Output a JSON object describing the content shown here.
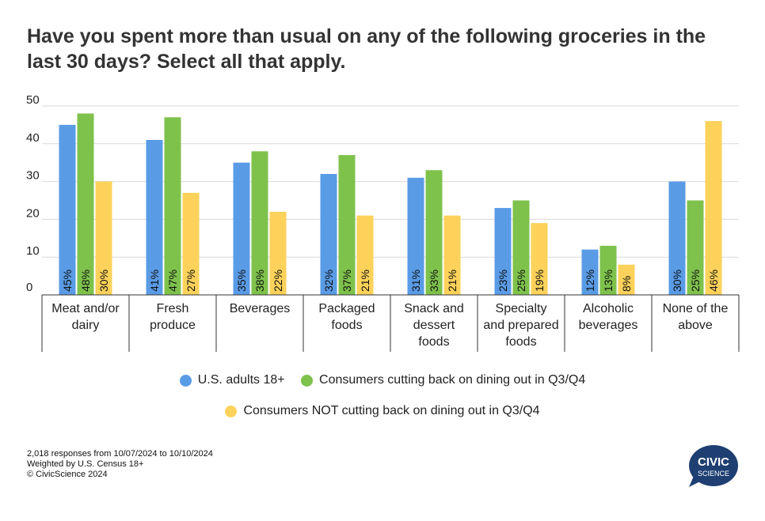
{
  "title": "Have you spent more than usual on any of the following groceries in the last 30 days? Select all that apply.",
  "chart_data": {
    "type": "bar",
    "categories": [
      [
        "Meat and/or",
        "dairy"
      ],
      [
        "Fresh",
        "produce"
      ],
      [
        "Beverages"
      ],
      [
        "Packaged",
        "foods"
      ],
      [
        "Snack and",
        "dessert",
        "foods"
      ],
      [
        "Specialty",
        "and prepared",
        "foods"
      ],
      [
        "Alcoholic",
        "beverages"
      ],
      [
        "None of the",
        "above"
      ]
    ],
    "series": [
      {
        "name": "U.S. adults 18+",
        "color": "#5a9be6",
        "values": [
          45,
          41,
          35,
          32,
          31,
          23,
          12,
          30
        ]
      },
      {
        "name": "Consumers cutting back on dining out in Q3/Q4",
        "color": "#7ec24c",
        "values": [
          48,
          47,
          38,
          37,
          33,
          25,
          13,
          25
        ]
      },
      {
        "name": "Consumers NOT cutting back on dining out in Q3/Q4",
        "color": "#fcd25a",
        "values": [
          30,
          27,
          22,
          21,
          21,
          19,
          8,
          46
        ]
      }
    ],
    "yticks": [
      0,
      10,
      20,
      30,
      40,
      50
    ],
    "ylim": [
      0,
      50
    ],
    "value_suffix": "%",
    "grid": true,
    "legend_position": "bottom"
  },
  "footnotes": [
    "2,018 responses from 10/07/2024 to 10/10/2024",
    "Weighted by U.S. Census 18+",
    "© CivicScience 2024"
  ],
  "logo": {
    "line1": "CIVIC",
    "line2": "SCIENCE",
    "color": "#1f3f73"
  }
}
